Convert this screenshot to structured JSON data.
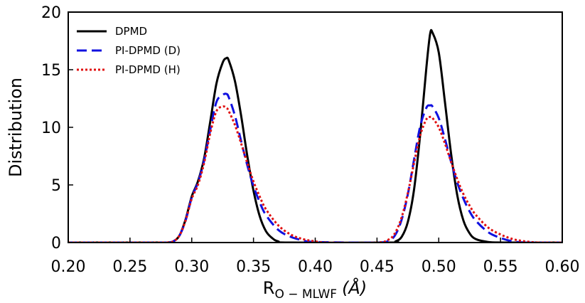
{
  "chart_data": {
    "type": "line",
    "title": "",
    "xlabel_main": "R",
    "xlabel_sub": "O − MLWF",
    "xlabel_unit": "(Å)",
    "ylabel": "Distribution",
    "xlim": [
      0.2,
      0.6
    ],
    "ylim": [
      0,
      20
    ],
    "xticks": [
      "0.20",
      "0.25",
      "0.30",
      "0.35",
      "0.40",
      "0.45",
      "0.50",
      "0.55",
      "0.60"
    ],
    "yticks": [
      "0",
      "5",
      "10",
      "15",
      "20"
    ],
    "legend_position": "top-left",
    "series": [
      {
        "name": "DPMD",
        "color": "#000000",
        "dash": "solid",
        "x": [
          0.28,
          0.285,
          0.29,
          0.295,
          0.3,
          0.305,
          0.31,
          0.315,
          0.32,
          0.325,
          0.328,
          0.33,
          0.335,
          0.34,
          0.345,
          0.35,
          0.355,
          0.36,
          0.365,
          0.37,
          0.38,
          0.46,
          0.465,
          0.47,
          0.475,
          0.48,
          0.485,
          0.49,
          0.493,
          0.495,
          0.5,
          0.505,
          0.51,
          0.515,
          0.52,
          0.525,
          0.53,
          0.54,
          0.55
        ],
        "y": [
          0.0,
          0.1,
          0.6,
          2.0,
          4.0,
          5.3,
          7.3,
          10.5,
          13.8,
          15.6,
          16.0,
          15.8,
          14.0,
          11.0,
          7.5,
          4.5,
          2.3,
          1.0,
          0.4,
          0.1,
          0.0,
          0.0,
          0.1,
          0.5,
          1.8,
          4.6,
          9.4,
          15.2,
          18.1,
          18.2,
          16.5,
          12.2,
          7.7,
          4.1,
          1.9,
          0.8,
          0.3,
          0.05,
          0.0
        ]
      },
      {
        "name": "PI-DPMD (D)",
        "color": "#1010e0",
        "dash": "dashed",
        "x": [
          0.28,
          0.285,
          0.29,
          0.295,
          0.3,
          0.305,
          0.31,
          0.315,
          0.32,
          0.325,
          0.328,
          0.33,
          0.335,
          0.34,
          0.345,
          0.35,
          0.355,
          0.36,
          0.37,
          0.38,
          0.39,
          0.4,
          0.45,
          0.46,
          0.465,
          0.47,
          0.475,
          0.48,
          0.485,
          0.49,
          0.493,
          0.495,
          0.5,
          0.505,
          0.51,
          0.515,
          0.52,
          0.525,
          0.53,
          0.54,
          0.55,
          0.56,
          0.57
        ],
        "y": [
          0.0,
          0.1,
          0.6,
          1.9,
          3.9,
          5.2,
          7.1,
          9.8,
          12.2,
          12.8,
          12.9,
          12.6,
          11.0,
          8.8,
          6.7,
          4.9,
          3.5,
          2.4,
          1.1,
          0.5,
          0.2,
          0.05,
          0.0,
          0.2,
          0.7,
          2.0,
          4.2,
          7.2,
          10.1,
          11.7,
          11.9,
          11.8,
          10.8,
          9.0,
          7.0,
          5.2,
          3.8,
          2.7,
          1.9,
          0.9,
          0.4,
          0.1,
          0.0
        ]
      },
      {
        "name": "PI-DPMD (H)",
        "color": "#e01010",
        "dash": "dotted",
        "x": [
          0.28,
          0.285,
          0.29,
          0.295,
          0.3,
          0.305,
          0.31,
          0.315,
          0.32,
          0.325,
          0.328,
          0.33,
          0.335,
          0.34,
          0.345,
          0.35,
          0.355,
          0.36,
          0.37,
          0.38,
          0.39,
          0.4,
          0.41,
          0.45,
          0.46,
          0.465,
          0.47,
          0.475,
          0.48,
          0.485,
          0.49,
          0.493,
          0.495,
          0.5,
          0.505,
          0.51,
          0.515,
          0.52,
          0.525,
          0.53,
          0.54,
          0.55,
          0.56,
          0.57,
          0.58
        ],
        "y": [
          0.0,
          0.1,
          0.6,
          1.9,
          3.8,
          5.0,
          6.9,
          9.5,
          11.4,
          11.8,
          11.7,
          11.4,
          10.2,
          8.6,
          6.9,
          5.3,
          4.0,
          2.9,
          1.5,
          0.7,
          0.3,
          0.1,
          0.0,
          0.0,
          0.3,
          0.9,
          2.2,
          4.3,
          6.9,
          9.3,
          10.7,
          10.9,
          10.8,
          10.0,
          8.6,
          7.0,
          5.5,
          4.2,
          3.2,
          2.4,
          1.3,
          0.7,
          0.3,
          0.1,
          0.0
        ]
      }
    ]
  }
}
